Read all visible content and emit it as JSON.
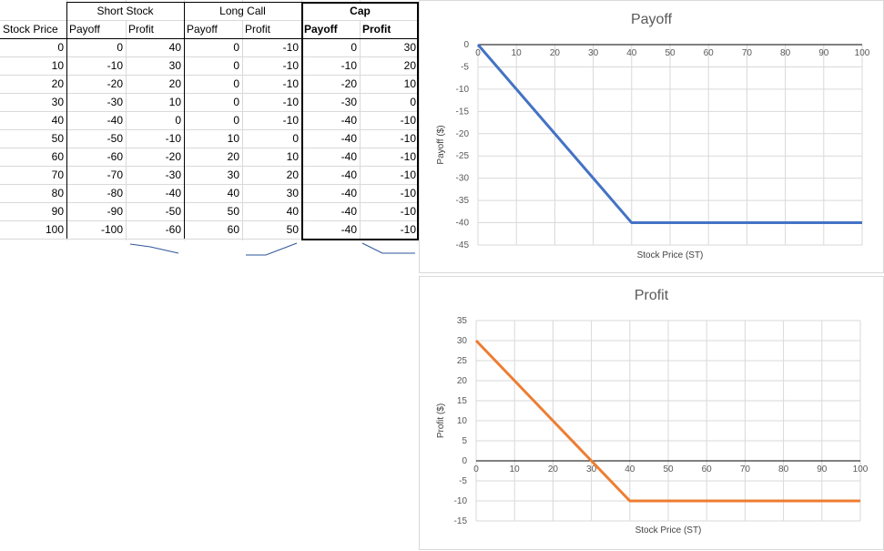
{
  "table": {
    "group_headers": [
      "Short Stock",
      "Long Call",
      "Cap"
    ],
    "column_headers": [
      "Stock Price",
      "Payoff",
      "Profit",
      "Payoff",
      "Profit",
      "Payoff",
      "Profit"
    ],
    "rows": [
      [
        0,
        0,
        40,
        0,
        -10,
        0,
        30
      ],
      [
        10,
        -10,
        30,
        0,
        -10,
        -10,
        20
      ],
      [
        20,
        -20,
        20,
        0,
        -10,
        -20,
        10
      ],
      [
        30,
        -30,
        10,
        0,
        -10,
        -30,
        0
      ],
      [
        40,
        -40,
        0,
        0,
        -10,
        -40,
        -10
      ],
      [
        50,
        -50,
        -10,
        10,
        0,
        -40,
        -10
      ],
      [
        60,
        -60,
        -20,
        20,
        10,
        -40,
        -10
      ],
      [
        70,
        -70,
        -30,
        30,
        20,
        -40,
        -10
      ],
      [
        80,
        -80,
        -40,
        40,
        30,
        -40,
        -10
      ],
      [
        90,
        -90,
        -50,
        50,
        40,
        -40,
        -10
      ],
      [
        100,
        -100,
        -60,
        60,
        50,
        -40,
        -10
      ]
    ]
  },
  "chart_data": [
    {
      "type": "line",
      "title": "Payoff",
      "xlabel": "Stock Price (ST)",
      "ylabel": "Payoff ($)",
      "x": [
        0,
        10,
        20,
        30,
        40,
        50,
        60,
        70,
        80,
        90,
        100
      ],
      "series": [
        {
          "values": [
            0,
            -10,
            -20,
            -30,
            -40,
            -40,
            -40,
            -40,
            -40,
            -40,
            -40
          ],
          "color": "#4472c4"
        }
      ],
      "xlim": [
        0,
        100
      ],
      "ylim": [
        -45,
        0
      ],
      "xticks": [
        0,
        10,
        20,
        30,
        40,
        50,
        60,
        70,
        80,
        90,
        100
      ],
      "yticks": [
        0,
        -5,
        -10,
        -15,
        -20,
        -25,
        -30,
        -35,
        -40,
        -45
      ],
      "grid": true,
      "legend": "none"
    },
    {
      "type": "line",
      "title": "Profit",
      "xlabel": "Stock Price (ST)",
      "ylabel": "Profit ($)",
      "x": [
        0,
        10,
        20,
        30,
        40,
        50,
        60,
        70,
        80,
        90,
        100
      ],
      "series": [
        {
          "values": [
            30,
            20,
            10,
            0,
            -10,
            -10,
            -10,
            -10,
            -10,
            -10,
            -10
          ],
          "color": "#ed7d31"
        }
      ],
      "xlim": [
        0,
        100
      ],
      "ylim": [
        -15,
        35
      ],
      "xticks": [
        0,
        10,
        20,
        30,
        40,
        50,
        60,
        70,
        80,
        90,
        100
      ],
      "yticks": [
        35,
        30,
        25,
        20,
        15,
        10,
        5,
        0,
        -5,
        -10,
        -15
      ],
      "grid": true,
      "legend": "none"
    }
  ]
}
